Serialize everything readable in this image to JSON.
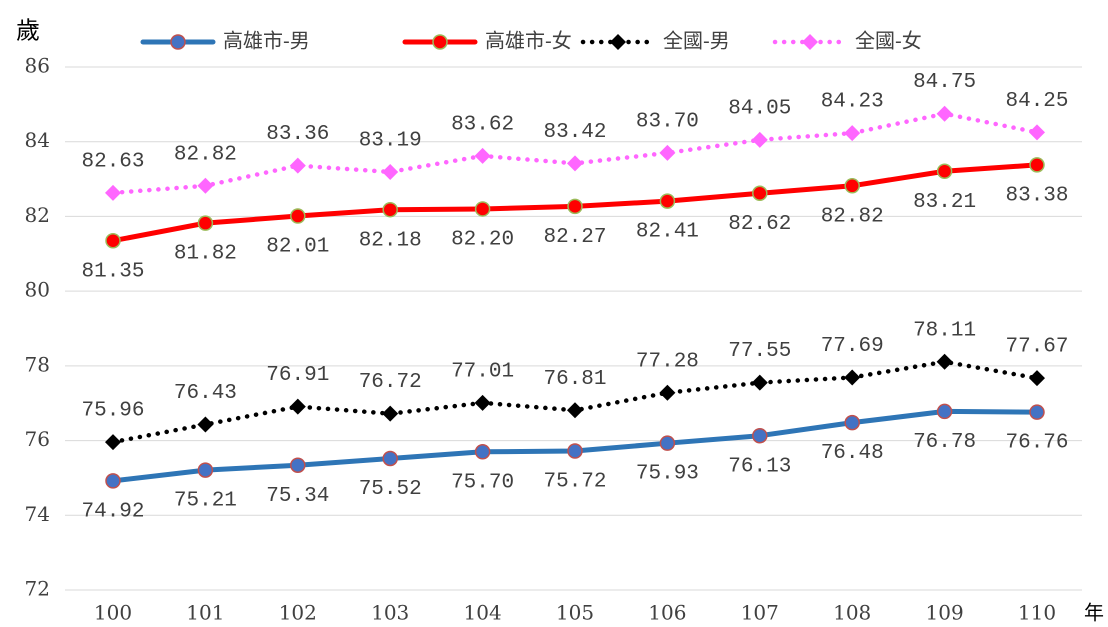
{
  "chart_data": {
    "type": "line",
    "y_label": "歲",
    "x_label": "年",
    "categories": [
      "100",
      "101",
      "102",
      "103",
      "104",
      "105",
      "106",
      "107",
      "108",
      "109",
      "110"
    ],
    "ylim": [
      72,
      86
    ],
    "yticks": [
      72,
      74,
      76,
      78,
      80,
      82,
      84,
      86
    ],
    "grid": true,
    "legend": "top",
    "series": [
      {
        "name": "高雄市-男",
        "color": "#2e75b6",
        "line_style": "solid",
        "marker": "circle",
        "marker_fill": "#4472c4",
        "marker_edge": "#c0504d",
        "label_position": "below",
        "values": [
          74.92,
          75.21,
          75.34,
          75.52,
          75.7,
          75.72,
          75.93,
          76.13,
          76.48,
          76.78,
          76.76
        ],
        "value_labels": [
          "74.92",
          "75.21",
          "75.34",
          "75.52",
          "75.70",
          "75.72",
          "75.93",
          "76.13",
          "76.48",
          "76.78",
          "76.76"
        ]
      },
      {
        "name": "高雄市-女",
        "color": "#ff0000",
        "line_style": "solid",
        "marker": "circle",
        "marker_fill": "#ff0000",
        "marker_edge": "#9bbb59",
        "label_position": "below",
        "values": [
          81.35,
          81.82,
          82.01,
          82.18,
          82.2,
          82.27,
          82.41,
          82.62,
          82.82,
          83.21,
          83.38
        ],
        "value_labels": [
          "81.35",
          "81.82",
          "82.01",
          "82.18",
          "82.20",
          "82.27",
          "82.41",
          "82.62",
          "82.82",
          "83.21",
          "83.38"
        ]
      },
      {
        "name": "全國-男",
        "color": "#000000",
        "line_style": "dotted",
        "marker": "diamond",
        "marker_fill": "#000000",
        "marker_edge": "#000000",
        "label_position": "above",
        "values": [
          75.96,
          76.43,
          76.91,
          76.72,
          77.01,
          76.81,
          77.28,
          77.55,
          77.69,
          78.11,
          77.67
        ],
        "value_labels": [
          "75.96",
          "76.43",
          "76.91",
          "76.72",
          "77.01",
          "76.81",
          "77.28",
          "77.55",
          "77.69",
          "78.11",
          "77.67"
        ]
      },
      {
        "name": "全國-女",
        "color": "#ff66ff",
        "line_style": "dotted",
        "marker": "diamond",
        "marker_fill": "#ff66ff",
        "marker_edge": "#ff66ff",
        "label_position": "above",
        "values": [
          82.63,
          82.82,
          83.36,
          83.19,
          83.62,
          83.42,
          83.7,
          84.05,
          84.23,
          84.75,
          84.25
        ],
        "value_labels": [
          "82.63",
          "82.82",
          "83.36",
          "83.19",
          "83.62",
          "83.42",
          "83.70",
          "84.05",
          "84.23",
          "84.75",
          "84.25"
        ]
      }
    ]
  }
}
